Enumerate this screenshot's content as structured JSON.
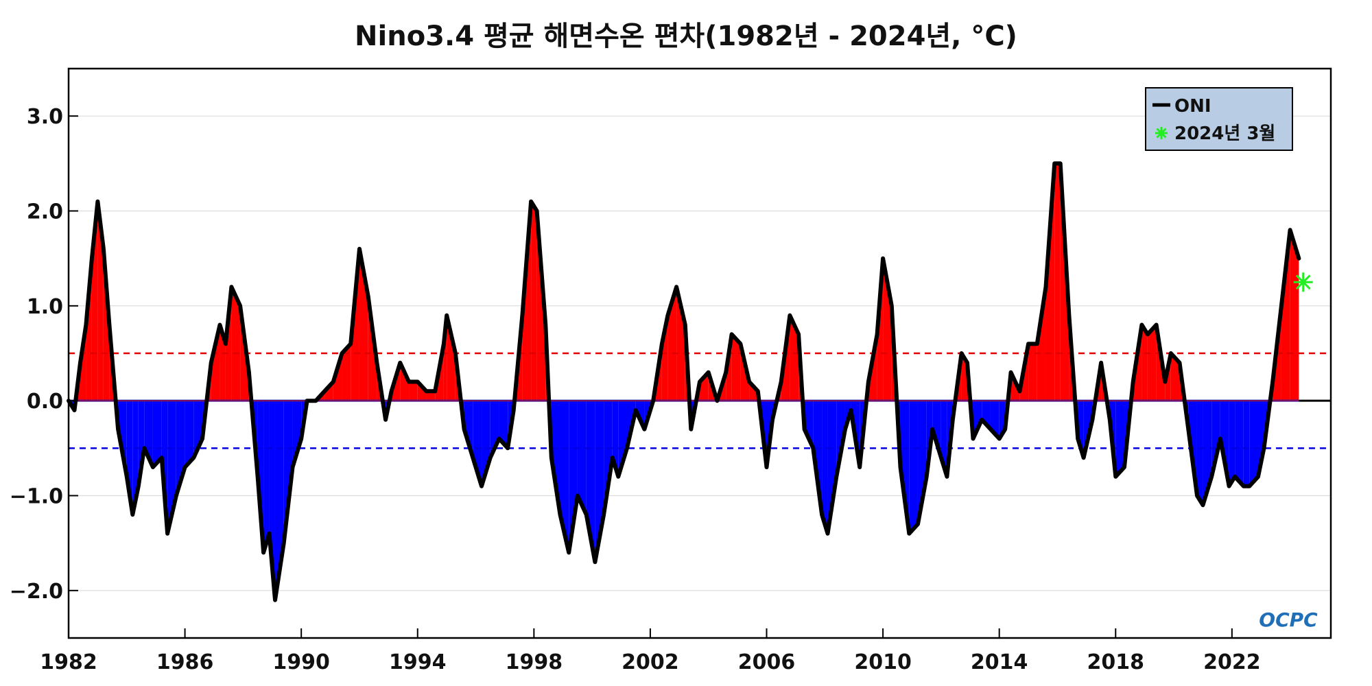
{
  "chart_data": {
    "type": "area",
    "title": "Nino3.4 평균 해면수온 편차(1982년 - 2024년, °C)",
    "xlabel": "",
    "ylabel": "",
    "xlim": [
      1982,
      2025.4
    ],
    "ylim": [
      -2.5,
      3.5
    ],
    "x_ticks": [
      1982,
      1986,
      1990,
      1994,
      1998,
      2002,
      2006,
      2010,
      2014,
      2018,
      2022
    ],
    "x_tick_labels": [
      "1982",
      "1986",
      "1990",
      "1994",
      "1998",
      "2002",
      "2006",
      "2010",
      "2014",
      "2018",
      "2022"
    ],
    "y_ticks": [
      3.0,
      2.0,
      1.0,
      0.0,
      -1.0,
      -2.0
    ],
    "y_tick_labels": [
      "3.0",
      "2.0",
      "1.0",
      "0.0",
      "−1.0",
      "−2.0"
    ],
    "thresholds": [
      {
        "value": 0.5,
        "color": "#e00000",
        "style": "dashed"
      },
      {
        "value": -0.5,
        "color": "#0000e0",
        "style": "dashed"
      }
    ],
    "grid": true,
    "legend_position": "top-right",
    "series": [
      {
        "name": "ONI",
        "color": "#000000",
        "fill_positive": "#ff0000",
        "fill_negative": "#0000ff",
        "points": [
          [
            1982.0,
            0.0
          ],
          [
            1982.2,
            -0.1
          ],
          [
            1982.4,
            0.4
          ],
          [
            1982.6,
            0.8
          ],
          [
            1982.8,
            1.5
          ],
          [
            1983.0,
            2.1
          ],
          [
            1983.2,
            1.6
          ],
          [
            1983.4,
            0.8
          ],
          [
            1983.7,
            -0.3
          ],
          [
            1984.0,
            -0.8
          ],
          [
            1984.2,
            -1.2
          ],
          [
            1984.4,
            -0.9
          ],
          [
            1984.6,
            -0.5
          ],
          [
            1984.9,
            -0.7
          ],
          [
            1985.2,
            -0.6
          ],
          [
            1985.4,
            -1.4
          ],
          [
            1985.7,
            -1.0
          ],
          [
            1986.0,
            -0.7
          ],
          [
            1986.3,
            -0.6
          ],
          [
            1986.6,
            -0.4
          ],
          [
            1986.9,
            0.4
          ],
          [
            1987.2,
            0.8
          ],
          [
            1987.4,
            0.6
          ],
          [
            1987.6,
            1.2
          ],
          [
            1987.9,
            1.0
          ],
          [
            1988.2,
            0.3
          ],
          [
            1988.5,
            -0.8
          ],
          [
            1988.7,
            -1.6
          ],
          [
            1988.9,
            -1.4
          ],
          [
            1989.1,
            -2.1
          ],
          [
            1989.4,
            -1.5
          ],
          [
            1989.7,
            -0.7
          ],
          [
            1990.0,
            -0.4
          ],
          [
            1990.2,
            0.0
          ],
          [
            1990.5,
            0.0
          ],
          [
            1990.8,
            0.1
          ],
          [
            1991.1,
            0.2
          ],
          [
            1991.4,
            0.5
          ],
          [
            1991.7,
            0.6
          ],
          [
            1992.0,
            1.6
          ],
          [
            1992.3,
            1.1
          ],
          [
            1992.6,
            0.4
          ],
          [
            1992.9,
            -0.2
          ],
          [
            1993.1,
            0.1
          ],
          [
            1993.4,
            0.4
          ],
          [
            1993.7,
            0.2
          ],
          [
            1994.0,
            0.2
          ],
          [
            1994.3,
            0.1
          ],
          [
            1994.6,
            0.1
          ],
          [
            1994.9,
            0.6
          ],
          [
            1995.0,
            0.9
          ],
          [
            1995.3,
            0.5
          ],
          [
            1995.6,
            -0.3
          ],
          [
            1995.9,
            -0.6
          ],
          [
            1996.2,
            -0.9
          ],
          [
            1996.5,
            -0.6
          ],
          [
            1996.8,
            -0.4
          ],
          [
            1997.1,
            -0.5
          ],
          [
            1997.3,
            -0.1
          ],
          [
            1997.6,
            0.9
          ],
          [
            1997.9,
            2.1
          ],
          [
            1998.1,
            2.0
          ],
          [
            1998.4,
            0.8
          ],
          [
            1998.6,
            -0.6
          ],
          [
            1998.9,
            -1.2
          ],
          [
            1999.2,
            -1.6
          ],
          [
            1999.5,
            -1.0
          ],
          [
            1999.8,
            -1.2
          ],
          [
            2000.1,
            -1.7
          ],
          [
            2000.4,
            -1.2
          ],
          [
            2000.7,
            -0.6
          ],
          [
            2000.9,
            -0.8
          ],
          [
            2001.2,
            -0.5
          ],
          [
            2001.5,
            -0.1
          ],
          [
            2001.8,
            -0.3
          ],
          [
            2002.1,
            0.0
          ],
          [
            2002.4,
            0.6
          ],
          [
            2002.6,
            0.9
          ],
          [
            2002.9,
            1.2
          ],
          [
            2003.2,
            0.8
          ],
          [
            2003.4,
            -0.3
          ],
          [
            2003.7,
            0.2
          ],
          [
            2004.0,
            0.3
          ],
          [
            2004.3,
            0.0
          ],
          [
            2004.6,
            0.3
          ],
          [
            2004.8,
            0.7
          ],
          [
            2005.1,
            0.6
          ],
          [
            2005.4,
            0.2
          ],
          [
            2005.7,
            0.1
          ],
          [
            2006.0,
            -0.7
          ],
          [
            2006.2,
            -0.2
          ],
          [
            2006.5,
            0.2
          ],
          [
            2006.8,
            0.9
          ],
          [
            2007.1,
            0.7
          ],
          [
            2007.3,
            -0.3
          ],
          [
            2007.6,
            -0.5
          ],
          [
            2007.9,
            -1.2
          ],
          [
            2008.1,
            -1.4
          ],
          [
            2008.4,
            -0.8
          ],
          [
            2008.7,
            -0.3
          ],
          [
            2008.9,
            -0.1
          ],
          [
            2009.2,
            -0.7
          ],
          [
            2009.5,
            0.2
          ],
          [
            2009.8,
            0.7
          ],
          [
            2010.0,
            1.5
          ],
          [
            2010.3,
            1.0
          ],
          [
            2010.6,
            -0.7
          ],
          [
            2010.9,
            -1.4
          ],
          [
            2011.2,
            -1.3
          ],
          [
            2011.5,
            -0.8
          ],
          [
            2011.7,
            -0.3
          ],
          [
            2012.0,
            -0.6
          ],
          [
            2012.2,
            -0.8
          ],
          [
            2012.4,
            -0.2
          ],
          [
            2012.7,
            0.5
          ],
          [
            2012.9,
            0.4
          ],
          [
            2013.1,
            -0.4
          ],
          [
            2013.4,
            -0.2
          ],
          [
            2013.7,
            -0.3
          ],
          [
            2014.0,
            -0.4
          ],
          [
            2014.2,
            -0.3
          ],
          [
            2014.4,
            0.3
          ],
          [
            2014.7,
            0.1
          ],
          [
            2015.0,
            0.6
          ],
          [
            2015.3,
            0.6
          ],
          [
            2015.6,
            1.2
          ],
          [
            2015.9,
            2.5
          ],
          [
            2016.1,
            2.5
          ],
          [
            2016.4,
            0.9
          ],
          [
            2016.7,
            -0.4
          ],
          [
            2016.9,
            -0.6
          ],
          [
            2017.2,
            -0.2
          ],
          [
            2017.5,
            0.4
          ],
          [
            2017.8,
            -0.2
          ],
          [
            2018.0,
            -0.8
          ],
          [
            2018.3,
            -0.7
          ],
          [
            2018.6,
            0.2
          ],
          [
            2018.9,
            0.8
          ],
          [
            2019.1,
            0.7
          ],
          [
            2019.4,
            0.8
          ],
          [
            2019.7,
            0.2
          ],
          [
            2019.9,
            0.5
          ],
          [
            2020.2,
            0.4
          ],
          [
            2020.5,
            -0.3
          ],
          [
            2020.8,
            -1.0
          ],
          [
            2021.0,
            -1.1
          ],
          [
            2021.3,
            -0.8
          ],
          [
            2021.6,
            -0.4
          ],
          [
            2021.9,
            -0.9
          ],
          [
            2022.1,
            -0.8
          ],
          [
            2022.4,
            -0.9
          ],
          [
            2022.6,
            -0.9
          ],
          [
            2022.9,
            -0.8
          ],
          [
            2023.1,
            -0.5
          ],
          [
            2023.4,
            0.2
          ],
          [
            2023.7,
            1.0
          ],
          [
            2024.0,
            1.8
          ],
          [
            2024.3,
            1.5
          ]
        ]
      }
    ],
    "markers": [
      {
        "label": "2024년 3월",
        "x": 2024.45,
        "y": 1.25,
        "color": "#22ee22",
        "symbol": "asterisk"
      }
    ],
    "watermark": "OCPC"
  }
}
